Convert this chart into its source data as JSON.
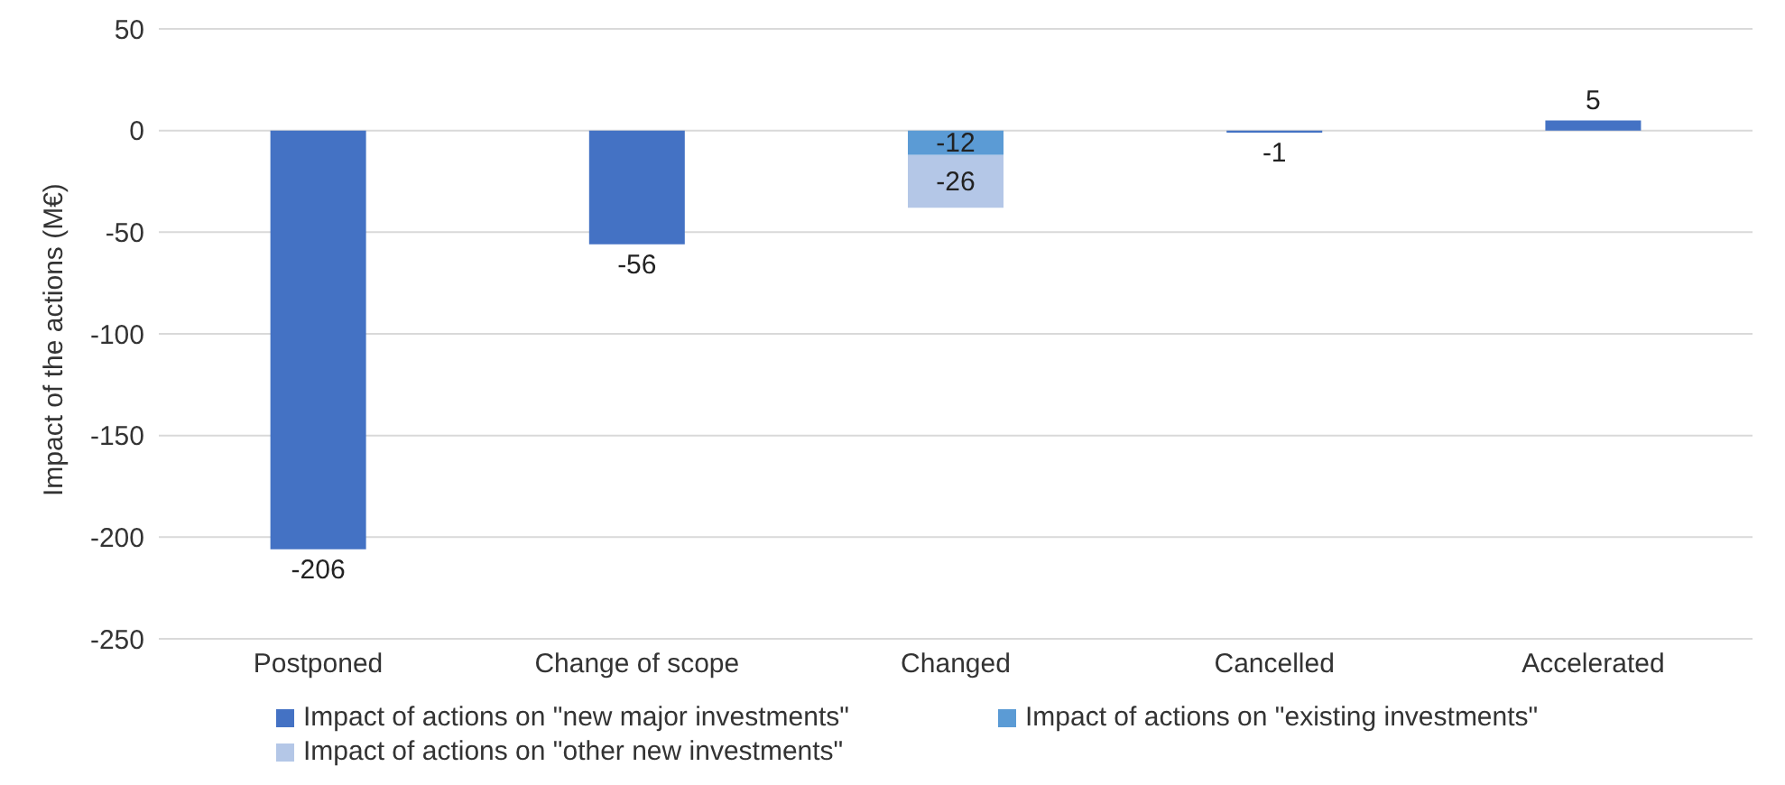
{
  "chart_data": {
    "type": "bar",
    "stacked": true,
    "ylabel": "Impact of the actions (M€)",
    "categories": [
      "Postponed",
      "Change of scope",
      "Changed",
      "Cancelled",
      "Accelerated"
    ],
    "series": [
      {
        "name": "Impact of actions on \"new major investments\"",
        "color": "#4472c4",
        "values": [
          -206,
          -56,
          null,
          -1,
          5
        ]
      },
      {
        "name": "Impact of actions on \"existing investments\"",
        "color": "#5b9bd5",
        "values": [
          null,
          null,
          -12,
          null,
          null
        ]
      },
      {
        "name": "Impact of actions on \"other new investments\"",
        "color": "#b4c7e7",
        "values": [
          null,
          null,
          -26,
          null,
          null
        ]
      }
    ],
    "ylim": [
      -250,
      50
    ],
    "yticks": [
      -250,
      -200,
      -150,
      -100,
      -50,
      0,
      50
    ],
    "grid": "y",
    "legend": "bottom",
    "data_labels": true
  }
}
